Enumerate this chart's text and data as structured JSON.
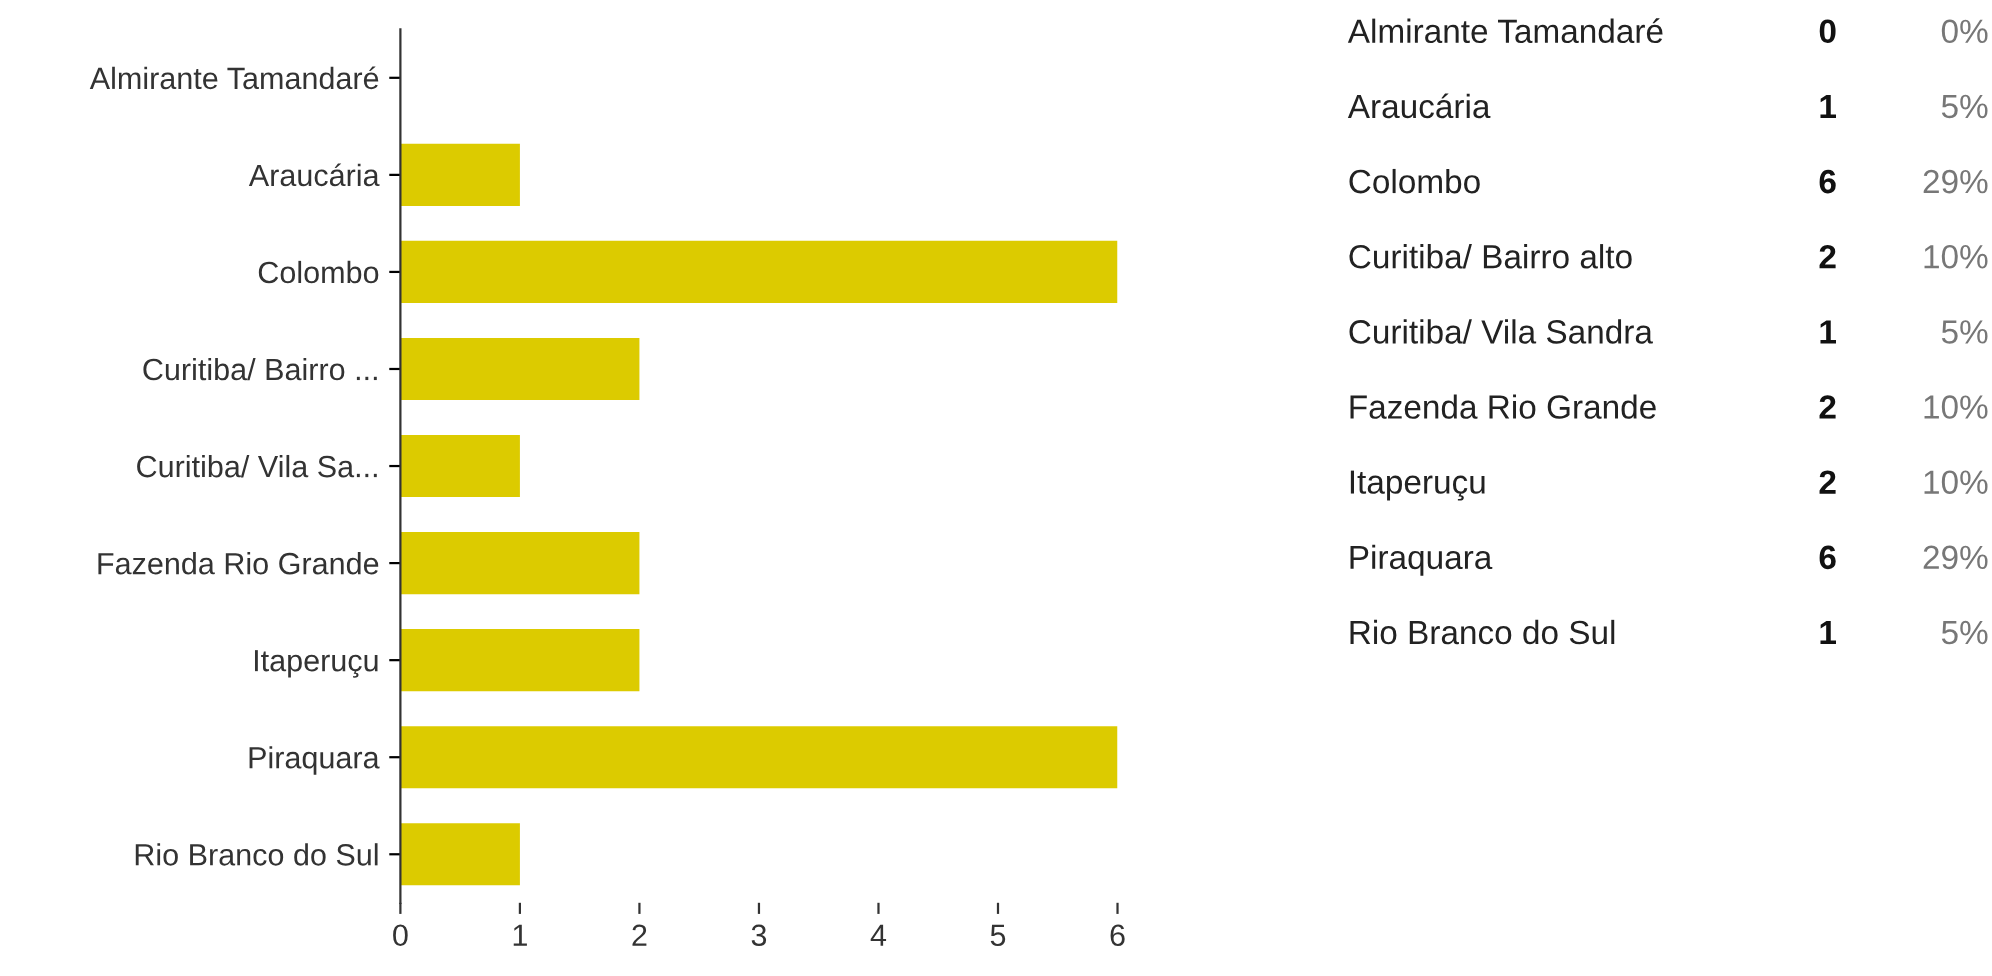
{
  "chart_data": [
    {
      "type": "bar",
      "orientation": "horizontal",
      "categories": [
        "Almirante Tamandaré",
        "Araucária",
        "Colombo",
        "Curitiba/ Bairro ...",
        "Curitiba/ Vila Sa...",
        "Fazenda Rio Grande",
        "Itaperuçu",
        "Piraquara",
        "Rio Branco do Sul"
      ],
      "values": [
        0,
        1,
        6,
        2,
        1,
        2,
        2,
        6,
        1
      ],
      "color": "#dccb00",
      "xlim": [
        0,
        6
      ],
      "xticks": [
        0,
        1,
        2,
        3,
        4,
        5,
        6
      ],
      "grid": false,
      "legend": false
    },
    {
      "type": "other",
      "annotations": [
        "Almirante Tamandaré",
        "0",
        "0%",
        "Araucária",
        "1",
        "5%",
        "Colombo",
        "6",
        "29%",
        "Curitiba/ Bairro alto",
        "2",
        "10%",
        "Curitiba/ Vila Sandra",
        "1",
        "5%",
        "Fazenda Rio Grande",
        "2",
        "10%",
        "Itaperuçu",
        "2",
        "10%",
        "Piraquara",
        "6",
        "29%",
        "Rio Branco do Sul",
        "1",
        "5%"
      ]
    }
  ]
}
